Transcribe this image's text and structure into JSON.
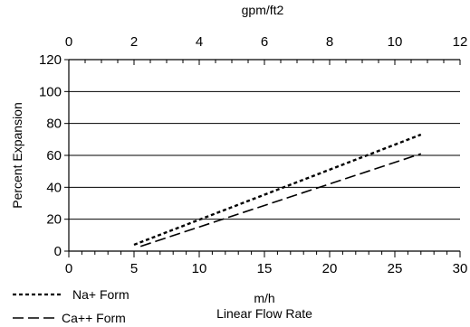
{
  "chart_data": {
    "type": "line",
    "title": "",
    "xlabel": "m/h",
    "xlabel_secondary": "Linear Flow Rate",
    "x2label": "gpm/ft2",
    "ylabel": "Percent Expansion",
    "xlim": [
      0,
      30
    ],
    "x2lim": [
      0,
      12
    ],
    "ylim": [
      0,
      120
    ],
    "xticks": [
      0,
      5,
      10,
      15,
      20,
      25,
      30
    ],
    "x2ticks": [
      0,
      2,
      4,
      6,
      8,
      10,
      12
    ],
    "yticks": [
      0,
      20,
      40,
      60,
      80,
      100,
      120
    ],
    "grid": "horizontal",
    "legend_position": "bottom-left",
    "series": [
      {
        "name": "Na+ Form",
        "style": "dotted",
        "x": [
          5,
          27
        ],
        "y": [
          4,
          73
        ]
      },
      {
        "name": "Ca++ Form",
        "style": "dashed",
        "x": [
          5.5,
          27
        ],
        "y": [
          3,
          61
        ]
      }
    ]
  }
}
